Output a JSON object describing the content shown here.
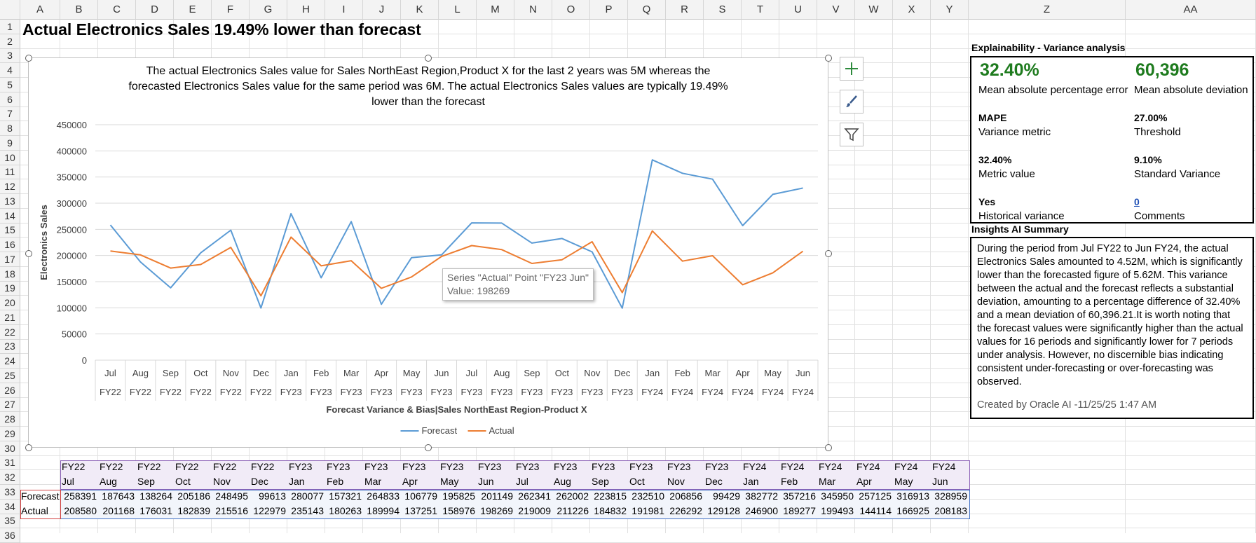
{
  "columns": [
    "A",
    "B",
    "C",
    "D",
    "E",
    "F",
    "G",
    "H",
    "I",
    "J",
    "K",
    "L",
    "M",
    "N",
    "O",
    "P",
    "Q",
    "R",
    "S",
    "T",
    "U",
    "V",
    "W",
    "X",
    "Y",
    "Z",
    "AA"
  ],
  "rows": [
    "1",
    "2",
    "3",
    "4",
    "5",
    "6",
    "7",
    "8",
    "9",
    "10",
    "11",
    "12",
    "13",
    "14",
    "15",
    "16",
    "17",
    "18",
    "19",
    "20",
    "21",
    "22",
    "23",
    "24",
    "25",
    "26",
    "27",
    "28",
    "29",
    "30",
    "31",
    "32",
    "33",
    "34",
    "35",
    "36"
  ],
  "title": "Actual Electronics Sales 19.49% lower than forecast",
  "chart": {
    "description": "The actual Electronics Sales value for Sales NorthEast Region,Product X for the last 2 years was 5M whereas the forecasted Electronics Sales value for the same period was 6M. The actual Electronics Sales values are typically 19.49% lower than the forecast",
    "desc_line1": "The actual Electronics Sales value for Sales NorthEast Region,Product X for the last 2 years was 5M whereas the",
    "desc_line2": "forecasted Electronics Sales value for the same period was 6M. The actual Electronics Sales values are typically 19.49%",
    "desc_line3": "lower than the forecast",
    "tooltip_line1": "Series \"Actual\" Point \"FY23 Jun\"",
    "tooltip_line2": "Value: 198269",
    "legend_forecast": "Forecast",
    "legend_actual": "Actual",
    "color_forecast": "#5b9bd5",
    "color_actual": "#ed7d31"
  },
  "chart_data": {
    "type": "line",
    "title": "",
    "xlabel": "Forecast Variance & Bias|Sales NorthEast Region-Product X",
    "ylabel": "Electronics Sales",
    "ylim": [
      0,
      450000
    ],
    "yticks": [
      0,
      50000,
      100000,
      150000,
      200000,
      250000,
      300000,
      350000,
      400000,
      450000
    ],
    "categories_month": [
      "Jul",
      "Aug",
      "Sep",
      "Oct",
      "Nov",
      "Dec",
      "Jan",
      "Feb",
      "Mar",
      "Apr",
      "May",
      "Jun",
      "Jul",
      "Aug",
      "Sep",
      "Oct",
      "Nov",
      "Dec",
      "Jan",
      "Feb",
      "Mar",
      "Apr",
      "May",
      "Jun"
    ],
    "categories_year": [
      "FY22",
      "FY22",
      "FY22",
      "FY22",
      "FY22",
      "FY22",
      "FY23",
      "FY23",
      "FY23",
      "FY23",
      "FY23",
      "FY23",
      "FY23",
      "FY23",
      "FY23",
      "FY23",
      "FY23",
      "FY23",
      "FY24",
      "FY24",
      "FY24",
      "FY24",
      "FY24",
      "FY24"
    ],
    "series": [
      {
        "name": "Forecast",
        "values": [
          258391,
          187643,
          138264,
          205186,
          248495,
          99613,
          280077,
          157321,
          264833,
          106779,
          195825,
          201149,
          262341,
          262002,
          223815,
          232510,
          206856,
          99429,
          382772,
          357216,
          345950,
          257125,
          316913,
          328959
        ]
      },
      {
        "name": "Actual",
        "values": [
          208580,
          201168,
          176031,
          182839,
          215516,
          122979,
          235143,
          180263,
          189994,
          137251,
          158976,
          198269,
          219009,
          211226,
          184832,
          191981,
          226292,
          129128,
          246900,
          189277,
          199493,
          144114,
          166925,
          208183
        ]
      }
    ],
    "legend": "bottom",
    "grid": true
  },
  "table": {
    "row_forecast_label": "Forecast",
    "row_actual_label": "Actual"
  },
  "explainability": {
    "title": "Explainability - Variance analysis",
    "mape_kpi": "32.40%",
    "mape_kpi_label": "Mean absolute percentage error",
    "mad_kpi": "60,396",
    "mad_kpi_label": "Mean absolute deviation",
    "metric_name": "MAPE",
    "metric_name_label": "Variance metric",
    "threshold": "27.00%",
    "threshold_label": "Threshold",
    "metric_value": "32.40%",
    "metric_value_label": "Metric value",
    "std_variance": "9.10%",
    "std_variance_label": "Standard Variance",
    "historical": "Yes",
    "historical_label": "Historical variance",
    "comments": "0",
    "comments_label": "Comments"
  },
  "insights": {
    "title": "Insights AI Summary",
    "text": "During the period from Jul FY22 to Jun FY24, the actual Electronics Sales amounted to 4.52M, which is significantly lower than the forecasted figure of 5.62M. This variance between the actual and the forecast reflects a substantial deviation, amounting to a percentage difference of 32.40% and a mean deviation of 60,396.21.It is worth noting that the forecast values were significantly higher than the actual values for 16 periods and significantly lower for 7 periods under analysis. However, no discernible bias indicating consistent under-forecasting or over-forecasting was observed.",
    "footer": "Created by Oracle AI -11/25/25 1:47 AM"
  }
}
